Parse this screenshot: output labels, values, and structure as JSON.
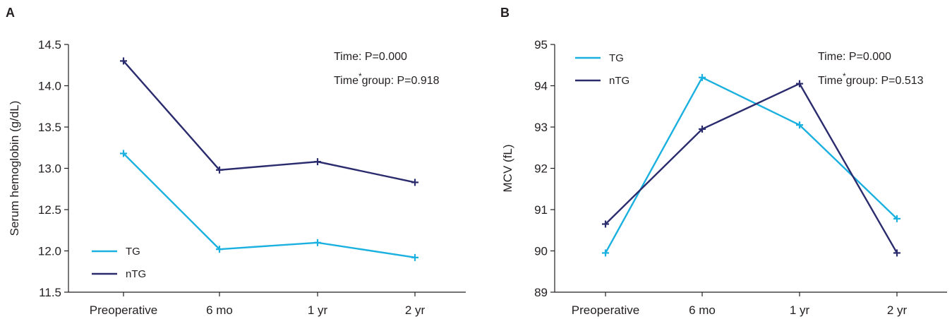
{
  "colors": {
    "TG": "#1ab0e0",
    "nTG": "#2b2c6e",
    "axis": "#231f20"
  },
  "chart_data": [
    {
      "panel": "A",
      "type": "line",
      "categories": [
        "Preoperative",
        "6 mo",
        "1 yr",
        "2 yr"
      ],
      "series": [
        {
          "name": "TG",
          "values": [
            13.18,
            12.02,
            12.1,
            11.92
          ]
        },
        {
          "name": "nTG",
          "values": [
            14.3,
            12.98,
            13.08,
            12.83
          ]
        }
      ],
      "ylabel": "Serum hemoglobin (g/dL)",
      "xlabel": "",
      "ylim": [
        11.5,
        14.5
      ],
      "yticks": [
        "11.5",
        "12.0",
        "12.5",
        "13.0",
        "13.5",
        "14.0",
        "14.5"
      ],
      "annotations": [
        {
          "prefix": "Time: P=0.000"
        },
        {
          "prefix": "Time",
          "sup": "*",
          "suffix": "group: P=0.918"
        }
      ],
      "legend_position": "bottom-left",
      "grid": false
    },
    {
      "panel": "B",
      "type": "line",
      "categories": [
        "Preoperative",
        "6 mo",
        "1 yr",
        "2 yr"
      ],
      "series": [
        {
          "name": "TG",
          "values": [
            89.95,
            94.2,
            93.05,
            90.78
          ]
        },
        {
          "name": "nTG",
          "values": [
            90.65,
            92.95,
            94.05,
            89.95
          ]
        }
      ],
      "ylabel": "MCV (fL)",
      "xlabel": "",
      "ylim": [
        89,
        95
      ],
      "yticks": [
        "89",
        "90",
        "91",
        "92",
        "93",
        "94",
        "95"
      ],
      "annotations": [
        {
          "prefix": "Time: P=0.000"
        },
        {
          "prefix": "Time",
          "sup": "*",
          "suffix": "group: P=0.513"
        }
      ],
      "legend_position": "top-left",
      "grid": false
    }
  ]
}
